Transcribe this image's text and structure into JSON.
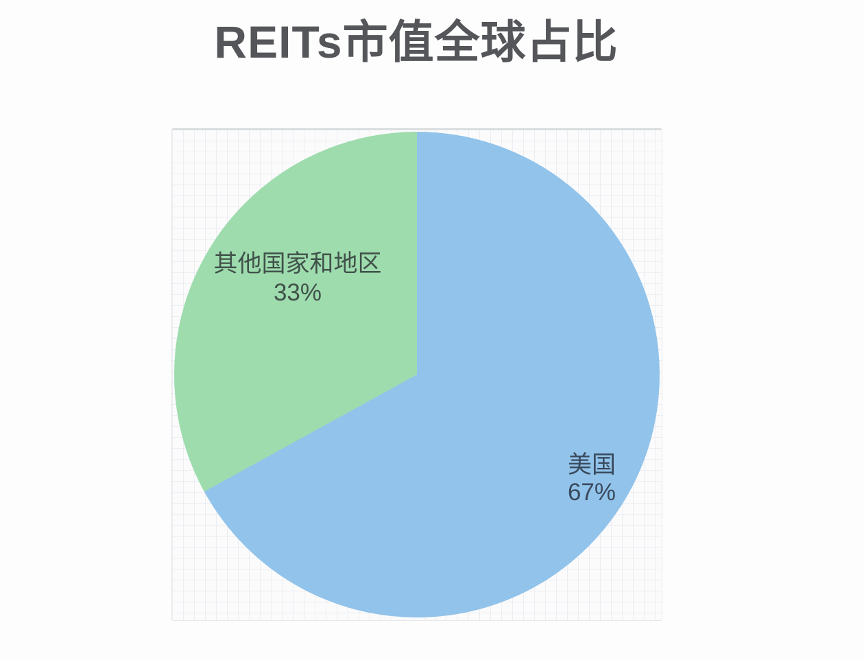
{
  "page": {
    "background": "#fdfdfd"
  },
  "chart_data": {
    "type": "pie",
    "title": "REITs市值全球占比",
    "title_color": "#54565a",
    "categories": [
      "美国",
      "其他国家和地区"
    ],
    "values": [
      67,
      33
    ],
    "slice_colors": [
      "#92c3ea",
      "#9edcae"
    ],
    "data_labels": [
      {
        "name": "美国",
        "pct": "67%",
        "color": "#3a4a5e"
      },
      {
        "name": "其他国家和地区",
        "pct": "33%",
        "color": "#41524a"
      }
    ],
    "start_angle_deg": 0,
    "direction": "clockwise",
    "legend": "none",
    "labels_inside": true,
    "plot_background": "#fbfbfc",
    "grid": "faint 16px graph-paper grid"
  }
}
